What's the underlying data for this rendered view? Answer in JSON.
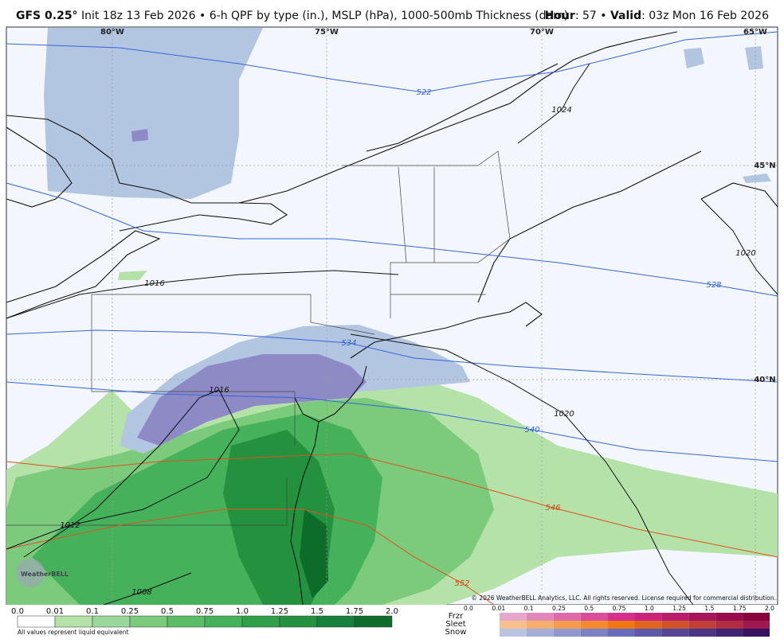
{
  "header": {
    "model": "GFS 0.25°",
    "description": "Init 18z 13 Feb 2026 • 6-h QPF by type (in.), MSLP (hPa), 1000-500mb Thickness (dam)",
    "hour_label": "Hour",
    "hour_value": ": 57 •",
    "valid_label": "Valid",
    "valid_value": ": 03z Mon 16 Feb 2026"
  },
  "map": {
    "lon_labels": [
      "80°W",
      "75°W",
      "70°W",
      "65°W"
    ],
    "lat_labels": [
      "45°N",
      "40°N"
    ],
    "thickness_labels": [
      "522",
      "528",
      "534",
      "540",
      "546",
      "552"
    ],
    "isobar_labels": [
      "1016",
      "1016",
      "1012",
      "1008",
      "1020",
      "1020",
      "1024"
    ],
    "copyright": "© 2026 WeatherBELL Analytics, LLC. All rights reserved. License required for commercial distribution.",
    "logo": "WeatherBELL"
  },
  "legend": {
    "rain_ticks": [
      "0.0",
      "0.01",
      "0.1",
      "0.25",
      "0.5",
      "0.75",
      "1.0",
      "1.25",
      "1.5",
      "1.75",
      "2.0"
    ],
    "note": "All values represent liquid equivalent",
    "ptype_labels": [
      "Frzr",
      "Sleet",
      "Snow"
    ],
    "ptype_ticks": [
      "0.0",
      "0.01",
      "0.1",
      "0.25",
      "0.5",
      "0.75",
      "1.0",
      "1.25",
      "1.5",
      "1.75",
      "2.0"
    ]
  }
}
